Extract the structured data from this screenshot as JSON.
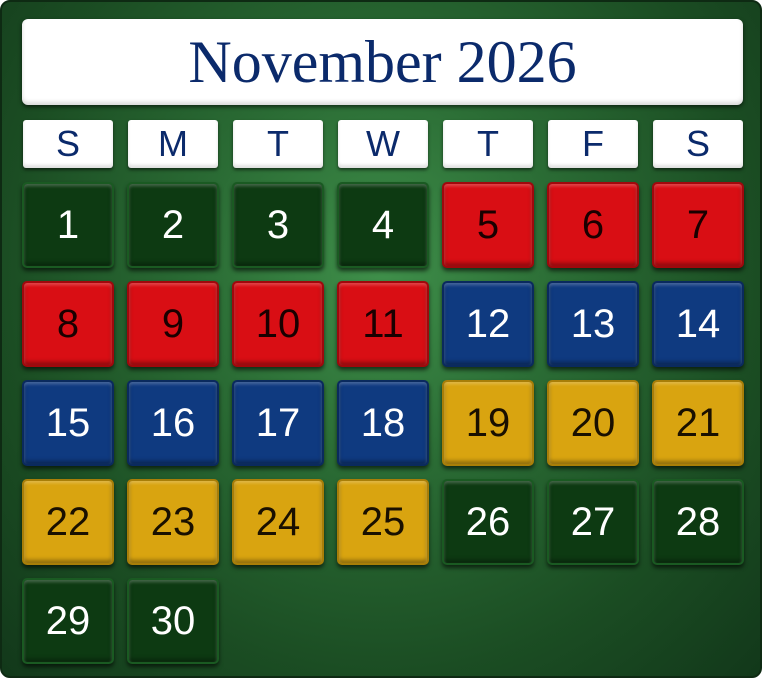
{
  "title": "November 2026",
  "weekdays": [
    "S",
    "M",
    "T",
    "W",
    "T",
    "F",
    "S"
  ],
  "colors": {
    "background": "#2a6b34",
    "green": "#0d3a12",
    "red": "#d90e14",
    "blue": "#0f3a80",
    "gold": "#d9a410",
    "title_text": "#0b2a6b"
  },
  "days": [
    {
      "label": "1",
      "color": "green"
    },
    {
      "label": "2",
      "color": "green"
    },
    {
      "label": "3",
      "color": "green"
    },
    {
      "label": "4",
      "color": "green"
    },
    {
      "label": "5",
      "color": "red"
    },
    {
      "label": "6",
      "color": "red"
    },
    {
      "label": "7",
      "color": "red"
    },
    {
      "label": "8",
      "color": "red"
    },
    {
      "label": "9",
      "color": "red"
    },
    {
      "label": "10",
      "color": "red"
    },
    {
      "label": "11",
      "color": "red"
    },
    {
      "label": "12",
      "color": "blue"
    },
    {
      "label": "13",
      "color": "blue"
    },
    {
      "label": "14",
      "color": "blue"
    },
    {
      "label": "15",
      "color": "blue"
    },
    {
      "label": "16",
      "color": "blue"
    },
    {
      "label": "17",
      "color": "blue"
    },
    {
      "label": "18",
      "color": "blue"
    },
    {
      "label": "19",
      "color": "gold"
    },
    {
      "label": "20",
      "color": "gold"
    },
    {
      "label": "21",
      "color": "gold"
    },
    {
      "label": "22",
      "color": "gold"
    },
    {
      "label": "23",
      "color": "gold"
    },
    {
      "label": "24",
      "color": "gold"
    },
    {
      "label": "25",
      "color": "gold"
    },
    {
      "label": "26",
      "color": "green"
    },
    {
      "label": "27",
      "color": "green"
    },
    {
      "label": "28",
      "color": "green"
    },
    {
      "label": "29",
      "color": "green"
    },
    {
      "label": "30",
      "color": "green"
    }
  ]
}
